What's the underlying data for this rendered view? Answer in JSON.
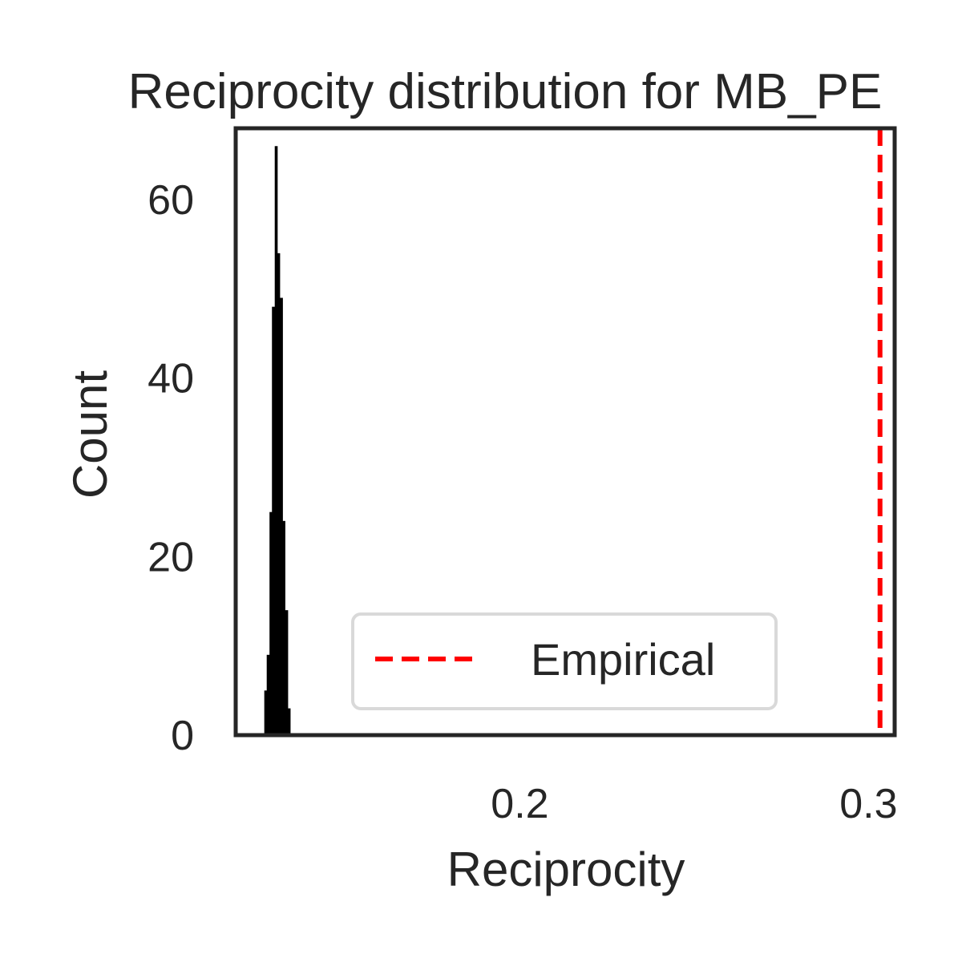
{
  "chart_data": {
    "type": "bar",
    "title": "Reciprocity distribution for MB_PE",
    "xlabel": "Reciprocity",
    "ylabel": "Count",
    "xlim": [
      0.1185,
      0.3075
    ],
    "ylim": [
      0,
      68
    ],
    "x_ticks": [
      0.2,
      0.3
    ],
    "x_tick_labels": [
      "0.2",
      "0.3"
    ],
    "y_ticks": [
      0,
      20,
      40,
      60
    ],
    "y_tick_labels": [
      "0",
      "20",
      "40",
      "60"
    ],
    "grid": false,
    "legend": {
      "position": "lower-center",
      "entries": [
        "Empirical"
      ]
    },
    "histogram": {
      "bin_edges": [
        0.1267,
        0.1274,
        0.1282,
        0.1289,
        0.1297,
        0.1304,
        0.1311,
        0.1319,
        0.1326,
        0.1334,
        0.1341
      ],
      "counts": [
        5,
        9,
        25,
        48,
        66,
        54,
        49,
        24,
        14,
        3
      ],
      "color": "#000000"
    },
    "reference_line": {
      "name": "Empirical",
      "x": 0.3033,
      "color": "#ff0000",
      "style": "dashed"
    }
  }
}
